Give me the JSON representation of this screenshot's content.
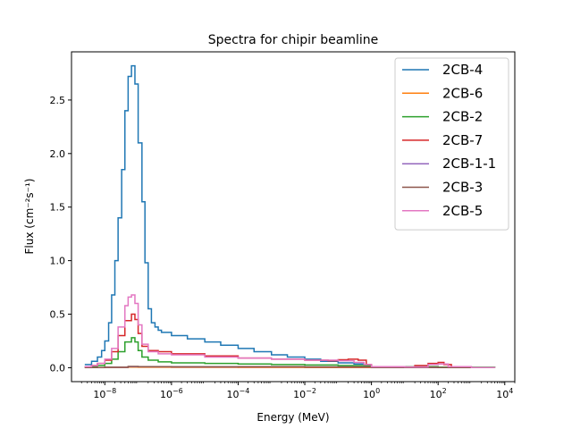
{
  "chart_data": {
    "type": "line",
    "title": "Spectra for chipir beamline",
    "xlabel": "Energy (MeV)",
    "ylabel": "Flux (cm⁻²s⁻¹)",
    "xscale": "log",
    "xlim": [
      1e-09,
      20000
    ],
    "ylim": [
      -0.13,
      2.95
    ],
    "xticks": [
      {
        "value": 1e-08,
        "base": "10",
        "exp": "−8"
      },
      {
        "value": 1e-06,
        "base": "10",
        "exp": "−6"
      },
      {
        "value": 0.0001,
        "base": "10",
        "exp": "−4"
      },
      {
        "value": 0.01,
        "base": "10",
        "exp": "−2"
      },
      {
        "value": 1,
        "base": "10",
        "exp": "0"
      },
      {
        "value": 100,
        "base": "10",
        "exp": "2"
      },
      {
        "value": 10000,
        "base": "10",
        "exp": "4"
      }
    ],
    "yticks": [
      {
        "value": 0.0,
        "label": "0.0"
      },
      {
        "value": 0.5,
        "label": "0.5"
      },
      {
        "value": 1.0,
        "label": "1.0"
      },
      {
        "value": 1.5,
        "label": "1.5"
      },
      {
        "value": 2.0,
        "label": "2.0"
      },
      {
        "value": 2.5,
        "label": "2.5"
      }
    ],
    "grid": false,
    "legend_position": "top-right",
    "style": "step",
    "series": [
      {
        "name": "2CB-4",
        "color": "#1f77b4",
        "points": [
          [
            2.5e-09,
            0.03
          ],
          [
            4e-09,
            0.06
          ],
          [
            6e-09,
            0.1
          ],
          [
            8e-09,
            0.16
          ],
          [
            1e-08,
            0.25
          ],
          [
            1.3e-08,
            0.42
          ],
          [
            1.6e-08,
            0.68
          ],
          [
            2e-08,
            1.0
          ],
          [
            2.5e-08,
            1.4
          ],
          [
            3.2e-08,
            1.85
          ],
          [
            4e-08,
            2.4
          ],
          [
            5e-08,
            2.72
          ],
          [
            6.3e-08,
            2.82
          ],
          [
            8e-08,
            2.65
          ],
          [
            1e-07,
            2.1
          ],
          [
            1.3e-07,
            1.55
          ],
          [
            1.6e-07,
            0.98
          ],
          [
            2e-07,
            0.55
          ],
          [
            2.5e-07,
            0.42
          ],
          [
            3.2e-07,
            0.38
          ],
          [
            4e-07,
            0.35
          ],
          [
            5e-07,
            0.33
          ],
          [
            1e-06,
            0.3
          ],
          [
            3e-06,
            0.27
          ],
          [
            1e-05,
            0.24
          ],
          [
            3e-05,
            0.21
          ],
          [
            0.0001,
            0.18
          ],
          [
            0.0003,
            0.15
          ],
          [
            0.001,
            0.12
          ],
          [
            0.003,
            0.1
          ],
          [
            0.01,
            0.08
          ],
          [
            0.03,
            0.06
          ],
          [
            0.1,
            0.045
          ],
          [
            0.3,
            0.035
          ],
          [
            0.6,
            0.02
          ],
          [
            1,
            0.005
          ],
          [
            3,
            0.002
          ],
          [
            10,
            0.003
          ],
          [
            30,
            0.004
          ],
          [
            100,
            0.003
          ],
          [
            300,
            0.002
          ],
          [
            1000,
            0.001
          ],
          [
            5000,
            0.0
          ]
        ]
      },
      {
        "name": "2CB-6",
        "color": "#ff7f0e",
        "points": [
          [
            2.5e-09,
            0.001
          ],
          [
            1e-08,
            0.003
          ],
          [
            5e-08,
            0.006
          ],
          [
            1e-07,
            0.005
          ],
          [
            1e-06,
            0.004
          ],
          [
            0.0001,
            0.003
          ],
          [
            0.01,
            0.002
          ],
          [
            1,
            0.001
          ],
          [
            100,
            0.001
          ],
          [
            5000,
            0.0
          ]
        ]
      },
      {
        "name": "2CB-2",
        "color": "#2ca02c",
        "points": [
          [
            2.5e-09,
            0.005
          ],
          [
            4e-09,
            0.01
          ],
          [
            6e-09,
            0.02
          ],
          [
            1e-08,
            0.04
          ],
          [
            1.6e-08,
            0.08
          ],
          [
            2.5e-08,
            0.15
          ],
          [
            4e-08,
            0.24
          ],
          [
            6.3e-08,
            0.28
          ],
          [
            8e-08,
            0.24
          ],
          [
            1e-07,
            0.16
          ],
          [
            1.3e-07,
            0.1
          ],
          [
            2e-07,
            0.07
          ],
          [
            4e-07,
            0.055
          ],
          [
            1e-06,
            0.045
          ],
          [
            1e-05,
            0.04
          ],
          [
            0.0001,
            0.035
          ],
          [
            0.001,
            0.03
          ],
          [
            0.01,
            0.025
          ],
          [
            0.1,
            0.02
          ],
          [
            1,
            0.01
          ],
          [
            100,
            0.005
          ],
          [
            5000,
            0.0
          ]
        ]
      },
      {
        "name": "2CB-7",
        "color": "#d62728",
        "points": [
          [
            2.5e-09,
            0.01
          ],
          [
            4e-09,
            0.02
          ],
          [
            6e-09,
            0.04
          ],
          [
            1e-08,
            0.07
          ],
          [
            1.6e-08,
            0.15
          ],
          [
            2.5e-08,
            0.3
          ],
          [
            4e-08,
            0.44
          ],
          [
            6.3e-08,
            0.5
          ],
          [
            8e-08,
            0.45
          ],
          [
            1e-07,
            0.32
          ],
          [
            1.3e-07,
            0.2
          ],
          [
            2e-07,
            0.16
          ],
          [
            4e-07,
            0.15
          ],
          [
            1e-06,
            0.13
          ],
          [
            1e-05,
            0.11
          ],
          [
            0.0001,
            0.09
          ],
          [
            0.001,
            0.08
          ],
          [
            0.01,
            0.07
          ],
          [
            0.05,
            0.065
          ],
          [
            0.1,
            0.075
          ],
          [
            0.2,
            0.08
          ],
          [
            0.4,
            0.07
          ],
          [
            0.7,
            0.03
          ],
          [
            1,
            0.01
          ],
          [
            5,
            0.005
          ],
          [
            20,
            0.02
          ],
          [
            50,
            0.04
          ],
          [
            100,
            0.05
          ],
          [
            150,
            0.03
          ],
          [
            250,
            0.005
          ],
          [
            1000,
            0.002
          ],
          [
            5000,
            0.0
          ]
        ]
      },
      {
        "name": "2CB-1-1",
        "color": "#9467bd",
        "points": [
          [
            2.5e-09,
            0.002
          ],
          [
            1e-08,
            0.004
          ],
          [
            5e-08,
            0.01
          ],
          [
            1e-07,
            0.009
          ],
          [
            1e-06,
            0.008
          ],
          [
            0.0001,
            0.008
          ],
          [
            0.01,
            0.006
          ],
          [
            1,
            0.003
          ],
          [
            100,
            0.001
          ],
          [
            5000,
            0.0
          ]
        ]
      },
      {
        "name": "2CB-3",
        "color": "#8c564b",
        "points": [
          [
            2.5e-09,
            0.002
          ],
          [
            1e-08,
            0.005
          ],
          [
            5e-08,
            0.012
          ],
          [
            1e-07,
            0.01
          ],
          [
            1e-06,
            0.009
          ],
          [
            0.0001,
            0.01
          ],
          [
            0.01,
            0.008
          ],
          [
            1,
            0.004
          ],
          [
            100,
            0.002
          ],
          [
            5000,
            0.0
          ]
        ]
      },
      {
        "name": "2CB-5",
        "color": "#e377c2",
        "points": [
          [
            2.5e-09,
            0.01
          ],
          [
            4e-09,
            0.02
          ],
          [
            6e-09,
            0.04
          ],
          [
            1e-08,
            0.08
          ],
          [
            1.6e-08,
            0.18
          ],
          [
            2.5e-08,
            0.38
          ],
          [
            4e-08,
            0.58
          ],
          [
            5e-08,
            0.66
          ],
          [
            6.3e-08,
            0.68
          ],
          [
            8e-08,
            0.6
          ],
          [
            1e-07,
            0.4
          ],
          [
            1.3e-07,
            0.22
          ],
          [
            2e-07,
            0.15
          ],
          [
            4e-07,
            0.13
          ],
          [
            1e-06,
            0.12
          ],
          [
            1e-05,
            0.1
          ],
          [
            0.0001,
            0.09
          ],
          [
            0.001,
            0.08
          ],
          [
            0.01,
            0.07
          ],
          [
            0.1,
            0.065
          ],
          [
            0.3,
            0.05
          ],
          [
            0.6,
            0.03
          ],
          [
            1,
            0.01
          ],
          [
            10,
            0.008
          ],
          [
            50,
            0.03
          ],
          [
            100,
            0.035
          ],
          [
            200,
            0.01
          ],
          [
            1000,
            0.002
          ],
          [
            5000,
            0.0
          ]
        ]
      }
    ]
  }
}
